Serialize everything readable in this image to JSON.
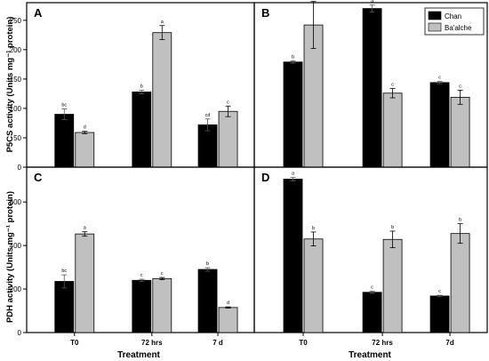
{
  "figure": {
    "ylabel_top": "P5CS activity (Units mg⁻¹ protein)",
    "ylabel_bottom": "PDH activity (Units mg⁻¹ protein)",
    "xlabel": "Treatment"
  },
  "legend": {
    "placement": "top-right of panel B",
    "entries": [
      {
        "label": "Chan",
        "color": "#000000"
      },
      {
        "label": "Ba'alche",
        "color": "#c0c0c0"
      }
    ]
  },
  "chart_data": [
    {
      "panel": "A",
      "type": "bar",
      "categories": [
        "T0",
        "72 hrs",
        "7 d"
      ],
      "ylim": [
        0,
        280
      ],
      "yticks": [
        0,
        50,
        100,
        150,
        200,
        250
      ],
      "series": [
        {
          "name": "Chan",
          "color": "#000000",
          "values": [
            90,
            128,
            72
          ],
          "errors": [
            9,
            3,
            10
          ],
          "letters": [
            "bc",
            "b",
            "cd"
          ]
        },
        {
          "name": "Ba'alche",
          "color": "#c0c0c0",
          "values": [
            59,
            229,
            95
          ],
          "errors": [
            2,
            12,
            9
          ],
          "letters": [
            "d",
            "a",
            "c"
          ]
        }
      ]
    },
    {
      "panel": "B",
      "type": "bar",
      "categories": [
        "T0",
        "72 hrs",
        "7d"
      ],
      "ylim": [
        0,
        280
      ],
      "yticks": [
        0,
        50,
        100,
        150,
        200,
        250
      ],
      "series": [
        {
          "name": "Chan",
          "color": "#000000",
          "values": [
            179,
            270,
            144
          ],
          "errors": [
            2,
            6,
            2
          ],
          "letters": [
            "b",
            "a",
            "c"
          ]
        },
        {
          "name": "Ba'alche",
          "color": "#c0c0c0",
          "values": [
            242,
            126,
            119
          ],
          "errors": [
            40,
            8,
            12
          ],
          "letters": [
            "a",
            "c",
            "c"
          ]
        }
      ]
    },
    {
      "panel": "C",
      "type": "bar",
      "categories": [
        "T0",
        "72 hrs",
        "7 d"
      ],
      "ylim": [
        0,
        760
      ],
      "yticks": [
        0,
        200,
        400,
        600
      ],
      "series": [
        {
          "name": "Chan",
          "color": "#000000",
          "values": [
            235,
            240,
            290
          ],
          "errors": [
            30,
            5,
            8
          ],
          "letters": [
            "bc",
            "c",
            "b"
          ]
        },
        {
          "name": "Ba'alche",
          "color": "#c0c0c0",
          "values": [
            453,
            248,
            115
          ],
          "errors": [
            10,
            5,
            3
          ],
          "letters": [
            "a",
            "c",
            "d"
          ]
        }
      ]
    },
    {
      "panel": "D",
      "type": "bar",
      "categories": [
        "T0",
        "72 hrs",
        "7d"
      ],
      "ylim": [
        0,
        760
      ],
      "yticks": [
        0,
        200,
        400,
        600
      ],
      "series": [
        {
          "name": "Chan",
          "color": "#000000",
          "values": [
            705,
            185,
            168
          ],
          "errors": [
            8,
            5,
            3
          ],
          "letters": [
            "a",
            "c",
            "c"
          ]
        },
        {
          "name": "Ba'alche",
          "color": "#c0c0c0",
          "values": [
            430,
            428,
            455
          ],
          "errors": [
            32,
            38,
            45
          ],
          "letters": [
            "b",
            "b",
            "b"
          ]
        }
      ]
    }
  ]
}
